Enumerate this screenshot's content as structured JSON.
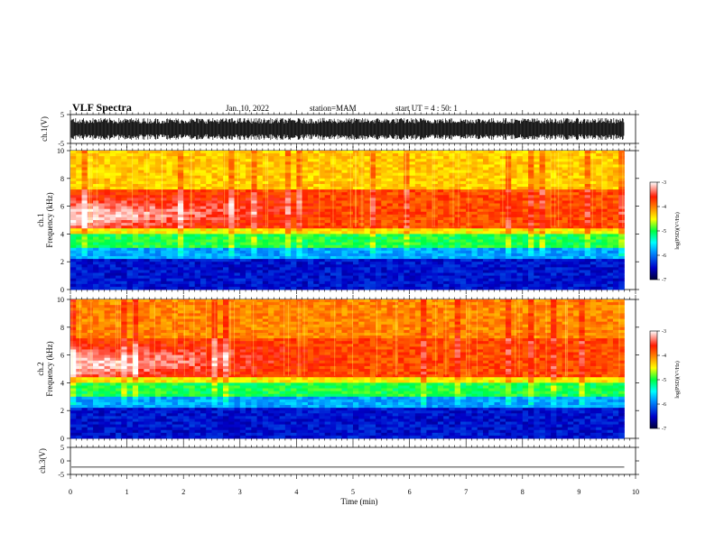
{
  "header": {
    "title": "VLF Spectra",
    "date": "Jan. 10, 2022",
    "station": "station=MAM",
    "start": "start UT =  4 : 50: 1"
  },
  "axes": {
    "ch1_wave_label": "ch.1(V)",
    "ch1_spec_label": "ch.1",
    "ch1_freq_label": "Frequency (kHz)",
    "ch2_spec_label": "ch.2",
    "ch2_freq_label": "Frequency (kHz)",
    "ch3_wave_label": "ch.3(V)",
    "time_label": "Time (min)",
    "colorbar_label": "log(PSD)(V²/Hz)",
    "colorbar2_label": "log(PSD)(V²/Hz)"
  },
  "colors": {
    "low": "#00007a",
    "mid": "#00ff00",
    "high": "#ff1a00",
    "peak": "#ffffff"
  },
  "chart_data": [
    {
      "type": "line",
      "name": "ch1-waveform",
      "ylabel": "ch.1(V)",
      "ylim": [
        -5,
        5
      ],
      "yticks": [
        "5",
        "-5"
      ],
      "xlim": [
        0,
        10
      ],
      "envelope_amplitude": 3.8
    },
    {
      "type": "heatmap",
      "name": "ch1-spectrogram",
      "ylabel": "Frequency (kHz)",
      "ylim": [
        0,
        10
      ],
      "yticks": [
        "0",
        "2",
        "4",
        "6",
        "8",
        "10"
      ],
      "xlim": [
        0,
        10
      ],
      "data_end_min": 9.8,
      "note_bands": [
        {
          "freq_khz": [
            0,
            2.3
          ],
          "log_psd": -6.2
        },
        {
          "freq_khz": [
            2.3,
            4.2
          ],
          "log_psd": -5.0
        },
        {
          "freq_khz": [
            4.2,
            7.0
          ],
          "log_psd": -3.6
        },
        {
          "freq_khz": [
            7.0,
            10
          ],
          "log_psd": -4.2
        }
      ]
    },
    {
      "type": "heatmap",
      "name": "ch2-spectrogram",
      "ylabel": "Frequency (kHz)",
      "ylim": [
        0,
        10
      ],
      "yticks": [
        "0",
        "2",
        "4",
        "6",
        "8",
        "10"
      ],
      "xlim": [
        0,
        10
      ],
      "data_end_min": 9.8
    },
    {
      "type": "line",
      "name": "ch3-waveform",
      "ylabel": "ch.3(V)",
      "ylim": [
        -5,
        5
      ],
      "yticks": [
        "5",
        "0",
        "-5"
      ],
      "xlim": [
        0,
        10
      ],
      "constant_value": -2.3
    },
    {
      "type": "colorbar",
      "label": "log(PSD)(V²/Hz)",
      "range": [
        -7,
        -3
      ],
      "ticks": [
        "-3",
        "-4",
        "-5",
        "-6",
        "-7"
      ]
    }
  ],
  "x_axis": {
    "ticks": [
      "0",
      "1",
      "2",
      "3",
      "4",
      "5",
      "6",
      "7",
      "8",
      "9",
      "10"
    ]
  }
}
